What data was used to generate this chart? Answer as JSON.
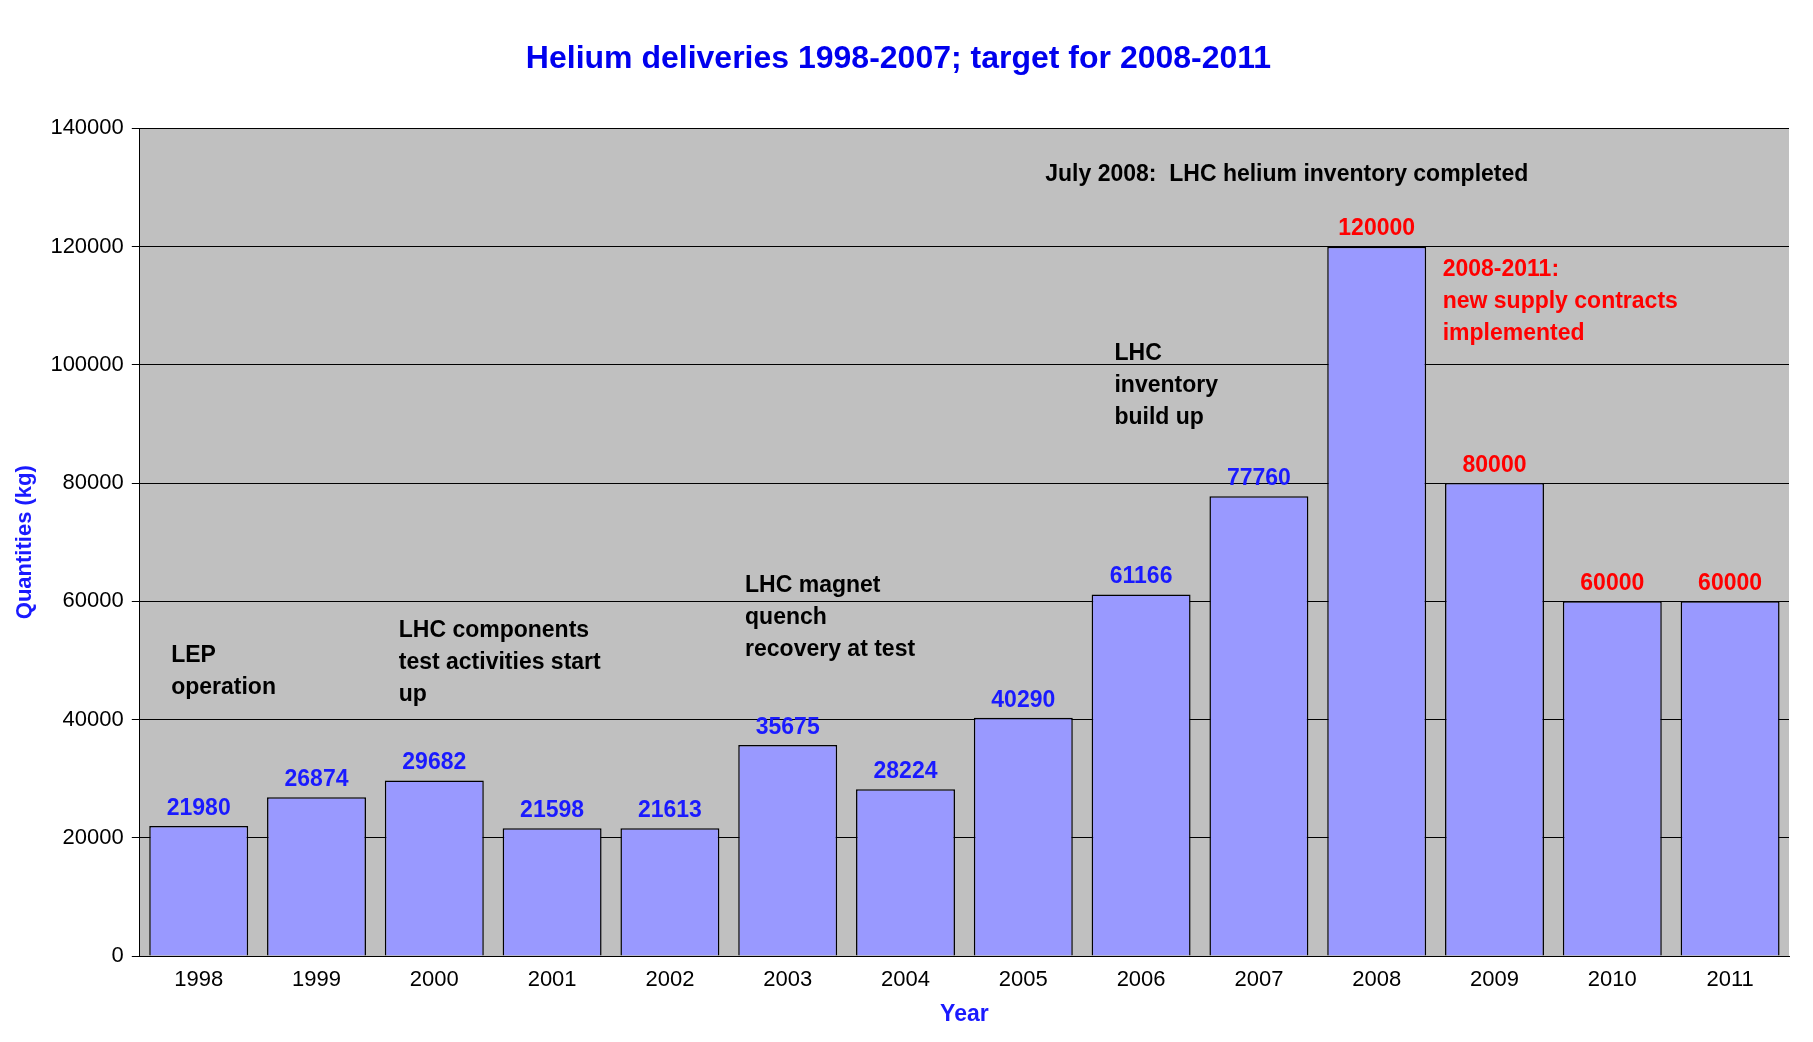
{
  "chart_data": {
    "type": "bar",
    "title": "Helium deliveries 1998-2007; target for 2008-2011",
    "xlabel": "Year",
    "ylabel": "Quantities (kg)",
    "categories": [
      "1998",
      "1999",
      "2000",
      "2001",
      "2002",
      "2003",
      "2004",
      "2005",
      "2006",
      "2007",
      "2008",
      "2009",
      "2010",
      "2011"
    ],
    "series": [
      {
        "color": "#9999ff",
        "values": [
          21980,
          26874,
          29682,
          21598,
          21613,
          35675,
          28224,
          40290,
          61166,
          77760,
          null,
          null,
          null,
          null
        ]
      },
      {
        "color": "#9999ff",
        "values": [
          null,
          null,
          null,
          null,
          null,
          null,
          null,
          null,
          null,
          null,
          120000,
          80000,
          60000,
          60000
        ]
      }
    ],
    "ylim": [
      0,
      140000
    ],
    "yticks": [
      0,
      20000,
      40000,
      60000,
      80000,
      100000,
      120000,
      140000
    ],
    "grid": "y",
    "legend": false,
    "data_labels": true,
    "annotations": [
      "LEP\noperation",
      "LHC components\ntest activities start\nup",
      "LHC magnet\nquench\nrecovery at test",
      "LHC\ninventory\nbuild up",
      "July 2008:  LHC helium inventory completed",
      "2008-2011:\nnew supply contracts\nimplemented"
    ]
  }
}
